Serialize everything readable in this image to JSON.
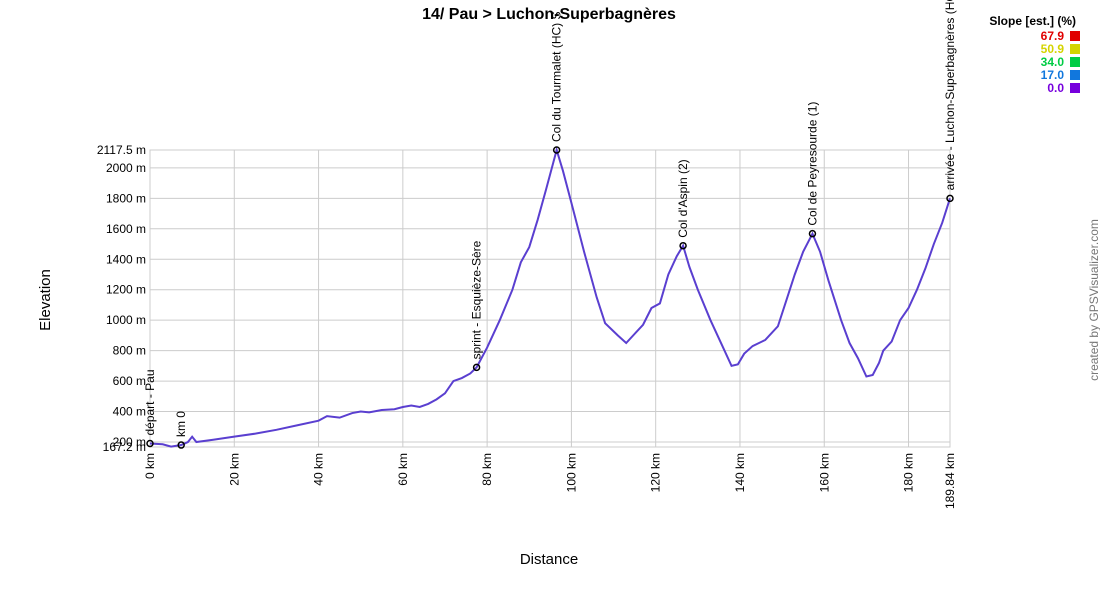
{
  "chart_data": {
    "type": "line",
    "title": "14/ Pau > Luchon-Superbagnères",
    "x_label": "Distance",
    "y_label": "Elevation",
    "credit": "created by GPSVisualizer.com",
    "grid": true,
    "xlim": [
      0,
      189.84
    ],
    "xticks": [
      {
        "value": 0,
        "label": "0 km"
      },
      {
        "value": 20,
        "label": "20 km"
      },
      {
        "value": 40,
        "label": "40 km"
      },
      {
        "value": 60,
        "label": "60 km"
      },
      {
        "value": 80,
        "label": "80 km"
      },
      {
        "value": 100,
        "label": "100 km"
      },
      {
        "value": 120,
        "label": "120 km"
      },
      {
        "value": 140,
        "label": "140 km"
      },
      {
        "value": 160,
        "label": "160 km"
      },
      {
        "value": 180,
        "label": "180 km"
      },
      {
        "value": 189.84,
        "label": "189.84 km"
      }
    ],
    "ylim": [
      167.2,
      2117.5
    ],
    "yticks": [
      {
        "value": 167.2,
        "label": "167.2 m"
      },
      {
        "value": 200,
        "label": "200 m"
      },
      {
        "value": 400,
        "label": "400 m"
      },
      {
        "value": 600,
        "label": "600 m"
      },
      {
        "value": 800,
        "label": "800 m"
      },
      {
        "value": 1000,
        "label": "1000 m"
      },
      {
        "value": 1200,
        "label": "1200 m"
      },
      {
        "value": 1400,
        "label": "1400 m"
      },
      {
        "value": 1600,
        "label": "1600 m"
      },
      {
        "value": 1800,
        "label": "1800 m"
      },
      {
        "value": 2000,
        "label": "2000 m"
      },
      {
        "value": 2117.5,
        "label": "2117.5 m"
      }
    ],
    "x": [
      0,
      3,
      5,
      7.4,
      9,
      10,
      11,
      15,
      20,
      25,
      30,
      35,
      40,
      42,
      45,
      48,
      50,
      52,
      55,
      58,
      60,
      62,
      64,
      66,
      68,
      70,
      72,
      74,
      76,
      77.5,
      80,
      83,
      86,
      88,
      90,
      92,
      94,
      96.5,
      98,
      100,
      103,
      106,
      108,
      111,
      113,
      115,
      117,
      119,
      121,
      123,
      125,
      126.5,
      128,
      130,
      133,
      136,
      138,
      139.5,
      141,
      143,
      146,
      149,
      151,
      153,
      155,
      157.2,
      159,
      161,
      164,
      166,
      168,
      170,
      171.5,
      173,
      174,
      176,
      178,
      180,
      182,
      184,
      186,
      188,
      189.84
    ],
    "series": [
      {
        "color": "#5a3fd0",
        "values": [
          190,
          185,
          170,
          180,
          200,
          235,
          200,
          215,
          235,
          255,
          280,
          310,
          340,
          370,
          360,
          390,
          400,
          395,
          410,
          415,
          430,
          440,
          430,
          450,
          480,
          520,
          600,
          620,
          650,
          690,
          820,
          1000,
          1200,
          1380,
          1480,
          1660,
          1860,
          2117.5,
          1980,
          1770,
          1450,
          1150,
          980,
          900,
          850,
          910,
          970,
          1080,
          1110,
          1300,
          1420,
          1489,
          1350,
          1200,
          1000,
          820,
          700,
          710,
          780,
          830,
          870,
          960,
          1130,
          1300,
          1450,
          1568,
          1450,
          1260,
          1000,
          850,
          750,
          630,
          640,
          720,
          800,
          860,
          1000,
          1080,
          1200,
          1340,
          1500,
          1640,
          1800
        ]
      }
    ],
    "waypoints": [
      {
        "x": 0,
        "y": 190,
        "label": "départ - Pau"
      },
      {
        "x": 7.4,
        "y": 180,
        "label": "km 0"
      },
      {
        "x": 77.5,
        "y": 690,
        "label": "sprint - Esquièze-Sère"
      },
      {
        "x": 96.5,
        "y": 2117.5,
        "label": "Col du Tourmalet (HC) S"
      },
      {
        "x": 126.5,
        "y": 1489,
        "label": "Col d'Aspin (2)"
      },
      {
        "x": 157.2,
        "y": 1568,
        "label": "Col de Peyresourde (1)"
      },
      {
        "x": 189.84,
        "y": 1800,
        "label": "arrivée - Luchon-Superbagnères (HC"
      }
    ],
    "legend_title": "Slope [est.] (%)",
    "legend": [
      {
        "value": 67.9,
        "label": "67.9",
        "color": "#e00000"
      },
      {
        "value": 50.9,
        "label": "50.9",
        "color": "#d4d400"
      },
      {
        "value": 34,
        "label": "34.0",
        "color": "#00cc44"
      },
      {
        "value": 17,
        "label": "17.0",
        "color": "#1177dd"
      },
      {
        "value": 0,
        "label": "0.0",
        "color": "#7700dd"
      }
    ]
  }
}
